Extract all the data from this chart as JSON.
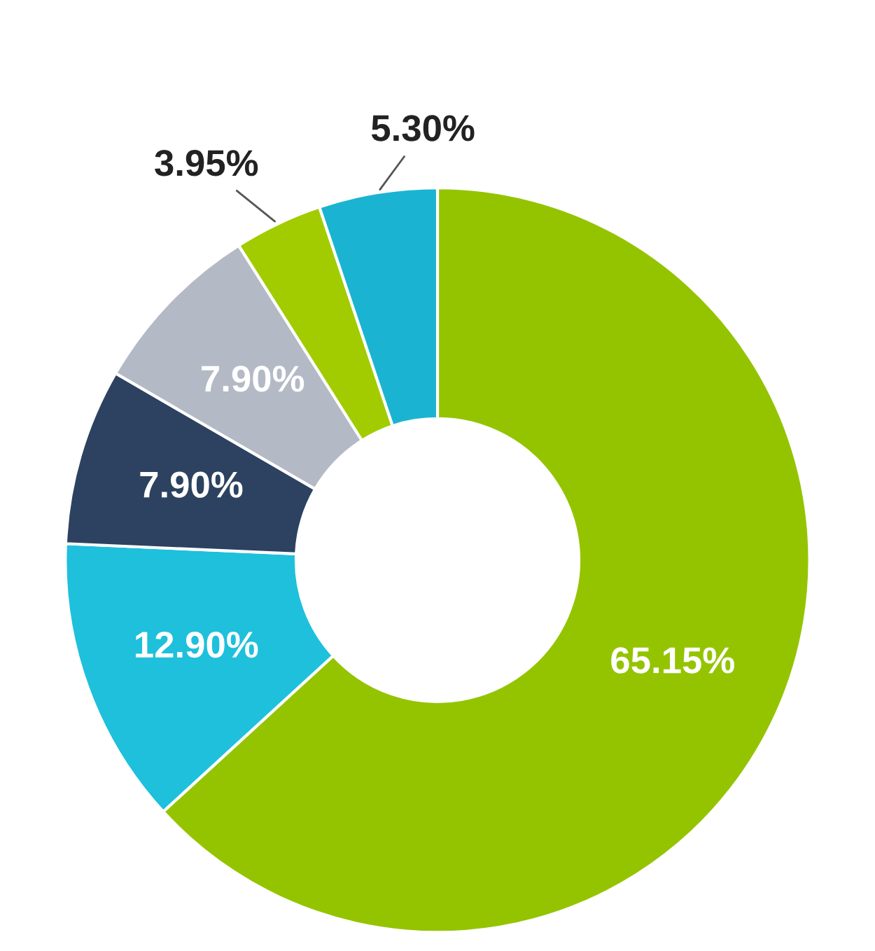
{
  "chart_data": {
    "type": "donut",
    "categories": [
      null,
      null,
      null,
      null,
      null,
      null
    ],
    "values": [
      65.15,
      12.9,
      7.9,
      7.9,
      3.95,
      5.3
    ],
    "colors": [
      "#94c400",
      "#1ec0dc",
      "#2c4260",
      "#b4b9c6",
      "#a2cc00",
      "#1ab4d2"
    ],
    "value_labels": [
      "65.15%",
      "12.90%",
      "7.90%",
      "7.90%",
      "3.95%",
      "5.30%"
    ]
  }
}
